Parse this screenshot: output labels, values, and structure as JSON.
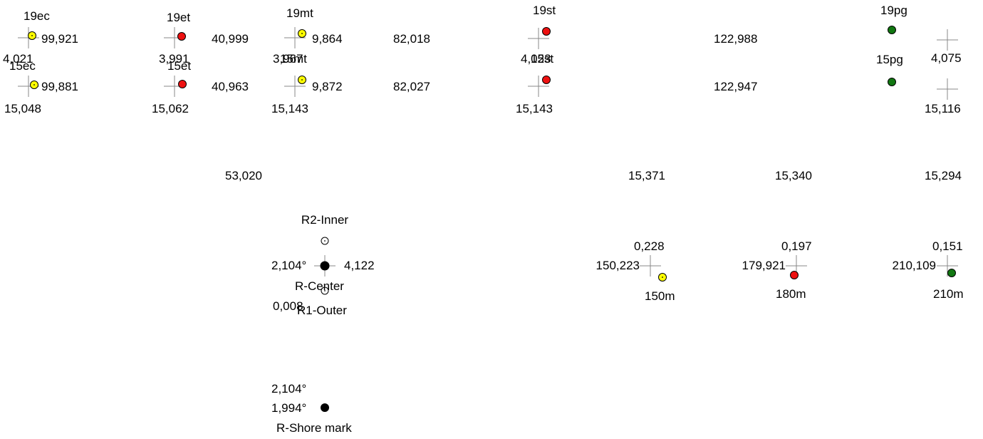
{
  "colors": {
    "yellow": "#ffff00",
    "red": "#ee1111",
    "green": "#117711",
    "black": "#000000",
    "crosshair": "#888888"
  },
  "buoys": {
    "b19ec": "19ec",
    "b15ec": "15ec",
    "b19et": "19et",
    "b15et": "15et",
    "b19mt": "19mt",
    "b15mt": "15mt",
    "b19st": "19st",
    "b15st": "15st",
    "b19pg": "19pg",
    "b15pg": "15pg"
  },
  "measures": {
    "ec19_dist": "99,921",
    "ec_offset": "4,021",
    "ec15_dist": "99,881",
    "ec15_lat": "15,048",
    "et19_offset": "3,991",
    "et19_dist": "40,999",
    "et15_dist": "40,963",
    "et15_lat": "15,062",
    "mt19_dist": "9,864",
    "mt_offset": "3,967",
    "mt15_dist": "9,872",
    "mt15_lat": "15,143",
    "gap1": "82,018",
    "gap2": "82,027",
    "st_offset": "4,023",
    "st15_lat": "15,143",
    "span1": "122,988",
    "span2": "122,947",
    "pg_offset": "4,075",
    "pg15_lat": "15,116",
    "row_53": "53,020",
    "row_15371": "15,371",
    "row_15340": "15,340",
    "row_15294": "15,294"
  },
  "reference": {
    "inner": "R2-Inner",
    "center": "R-Center",
    "outer": "R1-Outer",
    "angle": "2,104°",
    "dist": "4,122",
    "offset": "0,008",
    "shore_angle_a": "2,104°",
    "shore_angle_b": "1,994°",
    "shore": "R-Shore mark"
  },
  "marks": {
    "m150_offset": "0,228",
    "m150_dist": "150,223",
    "m150_label": "150m",
    "m180_offset": "0,197",
    "m180_dist": "179,921",
    "m180_label": "180m",
    "m210_offset": "0,151",
    "m210_dist": "210,109",
    "m210_label": "210m"
  }
}
